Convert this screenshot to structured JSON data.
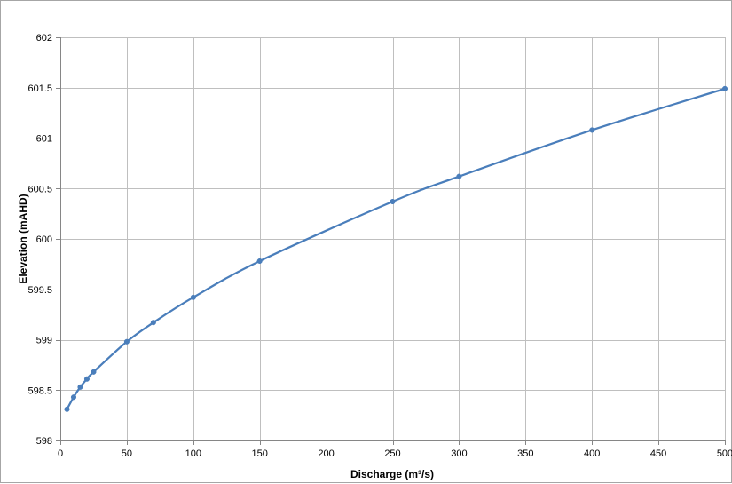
{
  "chart_data": {
    "type": "line",
    "title": "",
    "xlabel": "Discharge (m³/s)",
    "ylabel": "Elevation (mAHD)",
    "xlim": [
      0,
      500
    ],
    "ylim": [
      598,
      602
    ],
    "x_ticks": [
      0,
      50,
      100,
      150,
      200,
      250,
      300,
      350,
      400,
      450,
      500
    ],
    "y_ticks": [
      598,
      598.5,
      599,
      599.5,
      600,
      600.5,
      601,
      601.5,
      602
    ],
    "grid": true,
    "legend": "none",
    "series": [
      {
        "color": "#4a7ebb",
        "x": [
          5,
          10,
          15,
          20,
          25,
          50,
          70,
          100,
          150,
          250,
          300,
          400,
          500
        ],
        "y": [
          598.31,
          598.43,
          598.53,
          598.61,
          598.68,
          598.98,
          599.17,
          599.42,
          599.78,
          600.37,
          600.62,
          601.08,
          601.49
        ]
      }
    ]
  }
}
